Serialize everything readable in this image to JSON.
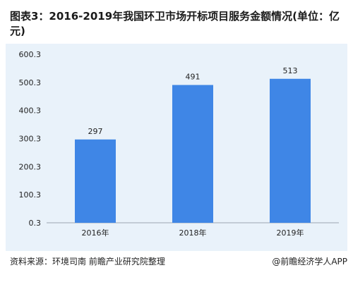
{
  "title": "图表3：2016-2019年我国环卫市场开标项目服务金额情况(单位：亿元)",
  "source": "资料来源：环境司南 前瞻产业研究院整理",
  "brand": "@前瞻经济学人APP",
  "colors": {
    "bar": "#3f86e6",
    "panel_bg": "#e9f2fa",
    "axis": "#9aa5b1",
    "text": "#222222"
  },
  "chart_data": {
    "type": "bar",
    "title": "图表3：2016-2019年我国环卫市场开标项目服务金额情况(单位：亿元)",
    "categories": [
      "2016年",
      "2018年",
      "2019年"
    ],
    "values": [
      297,
      491,
      513
    ],
    "data_labels": [
      "297",
      "491",
      "513"
    ],
    "y_ticks": [
      "0.3",
      "100.3",
      "200.3",
      "300.3",
      "400.3",
      "500.3",
      "600.3"
    ],
    "y_tick_values": [
      0.3,
      100.3,
      200.3,
      300.3,
      400.3,
      500.3,
      600.3
    ],
    "ylim": [
      0.3,
      600.3
    ],
    "xlabel": "",
    "ylabel": "",
    "grid": false,
    "legend": "none"
  }
}
